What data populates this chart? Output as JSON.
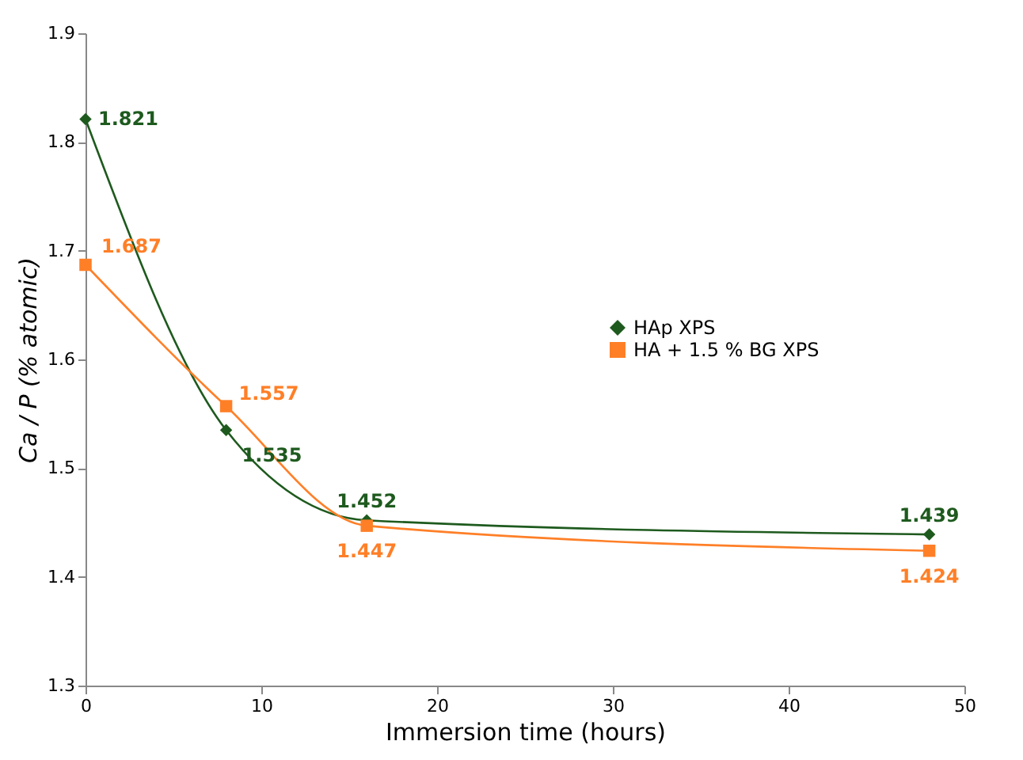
{
  "chart_data": {
    "type": "line",
    "xlabel": "Immersion time (hours)",
    "ylabel": "Ca / P (% atomic)",
    "x": [
      0,
      8,
      16,
      48
    ],
    "series": [
      {
        "name": "HAp XPS",
        "color": "#1e5a1e",
        "marker": "diamond",
        "values": [
          1.821,
          1.535,
          1.452,
          1.439
        ]
      },
      {
        "name": "HA + 1.5 % BG XPS",
        "color": "#ff7f27",
        "marker": "square",
        "values": [
          1.687,
          1.557,
          1.447,
          1.424
        ]
      }
    ],
    "xlim": [
      0,
      50
    ],
    "xticks": [
      0,
      10,
      20,
      30,
      40,
      50
    ],
    "ylim": [
      1.3,
      1.9
    ],
    "yticks": [
      1.3,
      1.4,
      1.5,
      1.6,
      1.7,
      1.8,
      1.9
    ],
    "grid": false,
    "legend": "right",
    "data_labels": true,
    "line_style": "solid"
  }
}
